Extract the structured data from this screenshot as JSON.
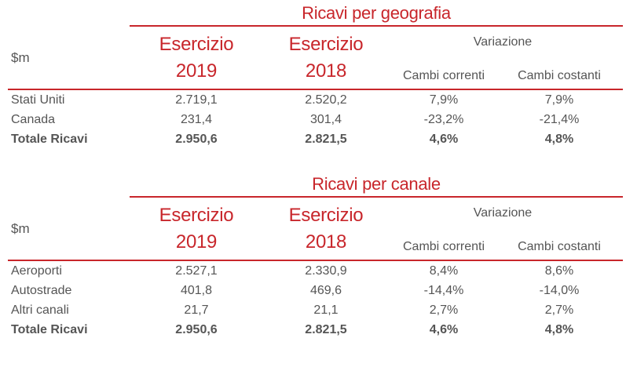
{
  "tables": [
    {
      "title": "Ricavi per geografia",
      "unit": "$m",
      "col_2019": [
        "Esercizio",
        "2019"
      ],
      "col_2018": [
        "Esercizio",
        "2018"
      ],
      "variation": "Variazione",
      "sub_current": "Cambi correnti",
      "sub_constant": "Cambi costanti",
      "rows": [
        {
          "label": "Stati Uniti",
          "v2019": "2.719,1",
          "v2018": "2.520,2",
          "current": "7,9%",
          "constant": "7,9%",
          "total": false
        },
        {
          "label": "Canada",
          "v2019": "231,4",
          "v2018": "301,4",
          "current": "-23,2%",
          "constant": "-21,4%",
          "total": false
        },
        {
          "label": "Totale Ricavi",
          "v2019": "2.950,6",
          "v2018": "2.821,5",
          "current": "4,6%",
          "constant": "4,8%",
          "total": true
        }
      ]
    },
    {
      "title": "Ricavi per canale",
      "unit": "$m",
      "col_2019": [
        "Esercizio",
        "2019"
      ],
      "col_2018": [
        "Esercizio",
        "2018"
      ],
      "variation": "Variazione",
      "sub_current": "Cambi correnti",
      "sub_constant": "Cambi costanti",
      "rows": [
        {
          "label": "Aeroporti",
          "v2019": "2.527,1",
          "v2018": "2.330,9",
          "current": "8,4%",
          "constant": "8,6%",
          "total": false
        },
        {
          "label": "Autostrade",
          "v2019": "401,8",
          "v2018": "469,6",
          "current": "-14,4%",
          "constant": "-14,0%",
          "total": false
        },
        {
          "label": "Altri canali",
          "v2019": "21,7",
          "v2018": "21,1",
          "current": "2,7%",
          "constant": "2,7%",
          "total": false
        },
        {
          "label": "Totale Ricavi",
          "v2019": "2.950,6",
          "v2018": "2.821,5",
          "current": "4,6%",
          "constant": "4,8%",
          "total": true
        }
      ]
    }
  ]
}
